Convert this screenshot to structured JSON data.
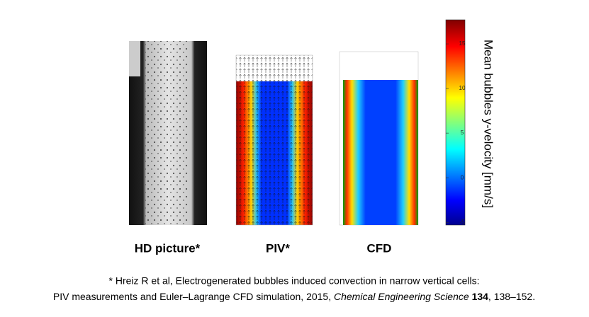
{
  "panels": [
    {
      "label": "HD picture*"
    },
    {
      "label": "PIV*"
    },
    {
      "label": "CFD"
    }
  ],
  "colorbar": {
    "label": "Mean bubbles y-velocity [mm/s]",
    "lim": [
      -5.3,
      17.7
    ],
    "ticks": [
      -5,
      0,
      5,
      10,
      15
    ]
  },
  "citation": {
    "line1": "* Hreiz R et al, Electrogenerated bubbles induced convection in narrow vertical cells:",
    "line2_start": "PIV measurements  and Euler–Lagrange CFD simulation, 2015, ",
    "journal": "Chemical Engineering Science",
    "volume": "134",
    "pages": ", 138–152."
  }
}
